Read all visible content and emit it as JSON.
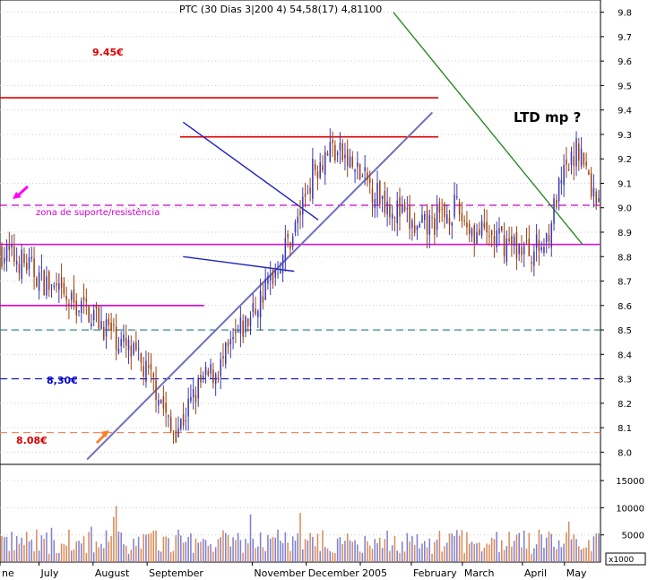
{
  "chart_data": {
    "type": "candlestick",
    "header": "PTC (30 Dias 3|200 4) 54,58(17) 4,81100",
    "price_axis": {
      "ticks": [
        8.0,
        8.1,
        8.2,
        8.3,
        8.4,
        8.5,
        8.6,
        8.7,
        8.8,
        8.9,
        9.0,
        9.1,
        9.2,
        9.3,
        9.4,
        9.5,
        9.6,
        9.7,
        9.8
      ],
      "tick_labels": [
        "8.0",
        "8.1",
        "8.2",
        "8.3",
        "8.4",
        "8.5",
        "8.6",
        "8.7",
        "8.8",
        "8.9",
        "9.0",
        "9.1",
        "9.2",
        "9.3",
        "9.4",
        "9.5",
        "9.6",
        "9.7",
        "9.8"
      ],
      "range": [
        7.95,
        9.85
      ]
    },
    "volume_axis": {
      "ticks": [
        5000,
        10000,
        15000
      ],
      "tick_labels": [
        "5000",
        "10000",
        "15000"
      ],
      "unit_label": "x1000",
      "range": [
        0,
        17000
      ]
    },
    "time_axis": {
      "labels": [
        "ne",
        "July",
        "August",
        "September",
        "November",
        "December",
        "2005",
        "February",
        "March",
        "April",
        "May"
      ],
      "start_index": 0,
      "end_index": 240
    },
    "close_anchors": [
      [
        0,
        8.82
      ],
      [
        8,
        8.78
      ],
      [
        15,
        8.72
      ],
      [
        25,
        8.62
      ],
      [
        35,
        8.58
      ],
      [
        45,
        8.48
      ],
      [
        55,
        8.37
      ],
      [
        63,
        8.25
      ],
      [
        68,
        8.08
      ],
      [
        72,
        8.12
      ],
      [
        80,
        8.28
      ],
      [
        88,
        8.35
      ],
      [
        95,
        8.48
      ],
      [
        100,
        8.55
      ],
      [
        110,
        8.75
      ],
      [
        118,
        8.92
      ],
      [
        125,
        9.15
      ],
      [
        132,
        9.25
      ],
      [
        138,
        9.2
      ],
      [
        145,
        9.12
      ],
      [
        152,
        9.05
      ],
      [
        160,
        8.98
      ],
      [
        167,
        8.9
      ],
      [
        175,
        8.95
      ],
      [
        182,
        9.0
      ],
      [
        190,
        8.9
      ],
      [
        197,
        8.88
      ],
      [
        205,
        8.85
      ],
      [
        212,
        8.82
      ],
      [
        218,
        8.85
      ],
      [
        225,
        9.1
      ],
      [
        232,
        9.25
      ],
      [
        238,
        9.05
      ],
      [
        240,
        9.05
      ]
    ],
    "annotations": [
      {
        "text": "9.45€",
        "color": "#dd0000"
      },
      {
        "text": "zona de suporte/resistência",
        "color": "#cc00cc"
      },
      {
        "text": "8,30€",
        "color": "#0000cc"
      },
      {
        "text": "8.08€",
        "color": "#dd0000"
      },
      {
        "text": "LTD mp ?",
        "color": "#000000"
      }
    ],
    "horizontal_levels": [
      {
        "price": 9.45,
        "color": "#e00000",
        "style": "solid",
        "from": 0.0,
        "to": 0.73
      },
      {
        "price": 9.29,
        "color": "#e00000",
        "style": "solid",
        "from": 0.3,
        "to": 0.73
      },
      {
        "price": 9.01,
        "color": "#cc00cc",
        "style": "dashed",
        "from": 0.0,
        "to": 1.0
      },
      {
        "price": 8.85,
        "color": "#e000e0",
        "style": "solid",
        "from": 0.0,
        "to": 1.0
      },
      {
        "price": 8.6,
        "color": "#e000e0",
        "style": "solid",
        "from": 0.0,
        "to": 0.34
      },
      {
        "price": 8.5,
        "color": "#208080",
        "style": "dashed",
        "from": 0.0,
        "to": 1.0
      },
      {
        "price": 8.3,
        "color": "#1010c0",
        "style": "dashed",
        "from": 0.0,
        "to": 1.0
      },
      {
        "price": 8.08,
        "color": "#ff7f50",
        "style": "dashed",
        "from": 0.0,
        "to": 1.0
      }
    ],
    "trend_lines": [
      {
        "name": "uptrend",
        "color": "#7070c0",
        "from": [
          0.145,
          7.97
        ],
        "to": [
          0.72,
          9.39
        ]
      },
      {
        "name": "LTD",
        "color": "#2a8a2a",
        "from": [
          0.655,
          9.8
        ],
        "to": [
          0.97,
          8.85
        ]
      },
      {
        "name": "flag top",
        "color": "#2020c0",
        "from": [
          0.305,
          9.35
        ],
        "to": [
          0.53,
          8.95
        ]
      },
      {
        "name": "flag bottom",
        "color": "#2020c0",
        "from": [
          0.305,
          8.8
        ],
        "to": [
          0.49,
          8.74
        ]
      }
    ],
    "colors": {
      "up_candle": "#3a3ab8",
      "down_candle": "#a0410d",
      "volume_up": "#8080d0",
      "volume_down": "#d98b5a",
      "grid": "#cccccc"
    }
  }
}
